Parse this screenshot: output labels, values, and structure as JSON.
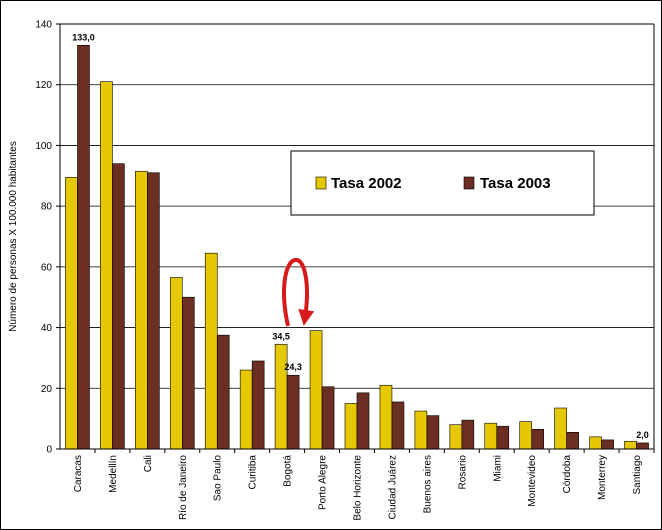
{
  "chart_data": {
    "type": "bar",
    "title": "",
    "xlabel": "",
    "ylabel": "Número de personas X 100.000 habitantes",
    "ylim": [
      0,
      140
    ],
    "yticks": [
      0,
      20,
      40,
      60,
      80,
      100,
      120,
      140
    ],
    "grid": true,
    "legend_position": "right",
    "categories": [
      "Caracas",
      "Medellín",
      "Cali",
      "Río de Janeiro",
      "Sao Paulo",
      "Curitiba",
      "Bogotá",
      "Porto Alegre",
      "Belo Horizonte",
      "Ciudad Juárez",
      "Buenos aires",
      "Rosario",
      "Miami",
      "Montevideo",
      "Córdoba",
      "Monterrey",
      "Santiago"
    ],
    "series": [
      {
        "name": "Tasa 2002",
        "color": "#E6C800",
        "values": [
          89.5,
          121.0,
          91.5,
          56.5,
          64.5,
          26.0,
          34.5,
          39.0,
          15.0,
          21.0,
          12.5,
          8.0,
          8.5,
          9.0,
          13.5,
          4.0,
          2.5
        ]
      },
      {
        "name": "Tasa 2003",
        "color": "#6B2E22",
        "values": [
          133.0,
          94.0,
          91.0,
          50.0,
          37.5,
          29.0,
          24.3,
          20.5,
          18.5,
          15.5,
          11.0,
          9.5,
          7.5,
          6.5,
          5.5,
          3.0,
          2.0
        ]
      }
    ],
    "data_labels": [
      {
        "series": 1,
        "category": 0,
        "text": "133,0"
      },
      {
        "series": 0,
        "category": 6,
        "text": "34,5"
      },
      {
        "series": 1,
        "category": 6,
        "text": "24,3"
      },
      {
        "series": 1,
        "category": 16,
        "text": "2,0"
      }
    ],
    "annotations": [
      "red-curved-double-arrow"
    ]
  }
}
